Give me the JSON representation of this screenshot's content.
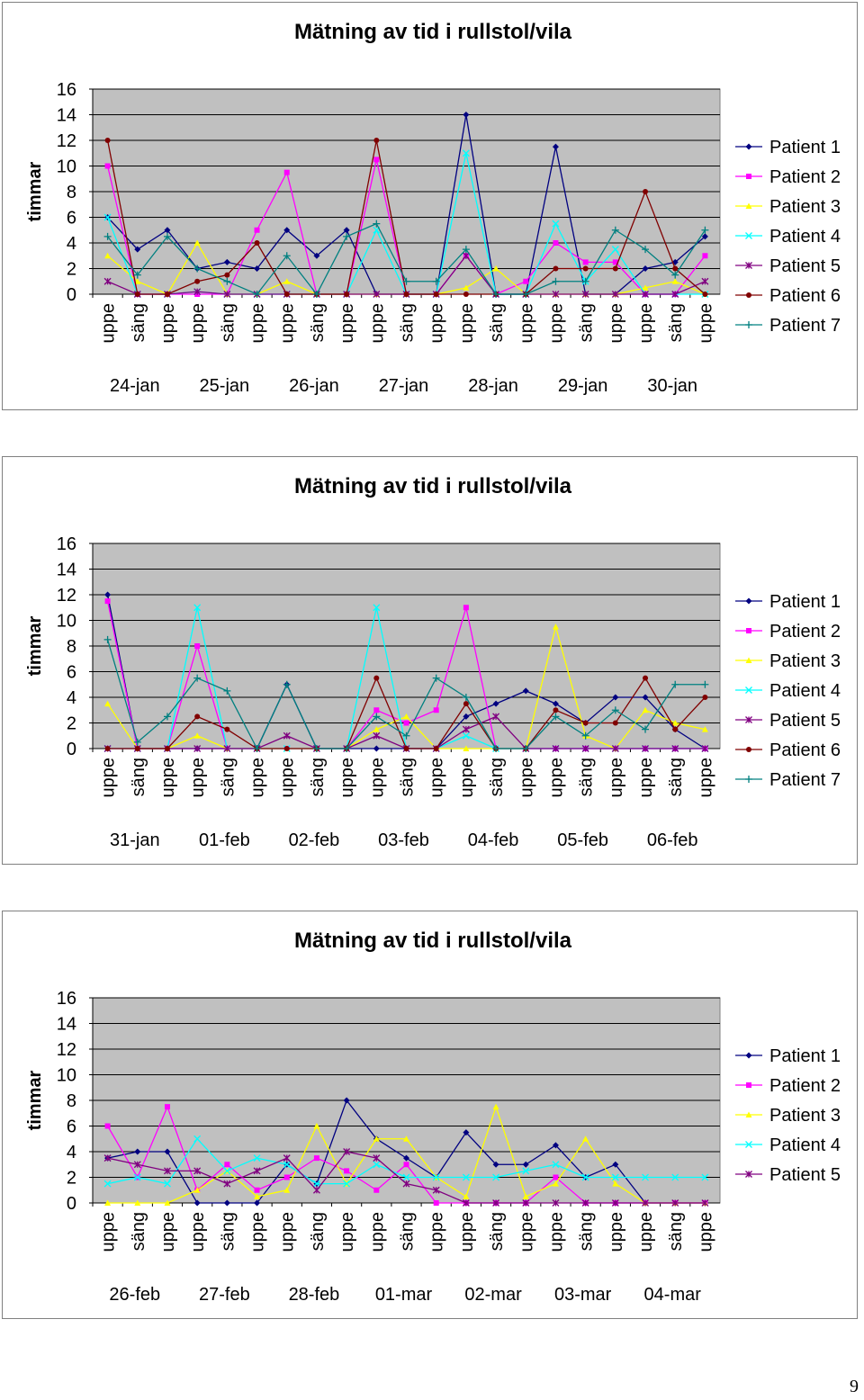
{
  "chart_data": [
    {
      "type": "line",
      "title": "Mätning av tid i rullstol/vila",
      "ylabel": "timmar",
      "xlabel": "",
      "ylim": [
        0,
        16
      ],
      "y_ticks": [
        0,
        2,
        4,
        6,
        8,
        10,
        12,
        14,
        16
      ],
      "grid": "horizontal",
      "legend": "right",
      "categories": [
        "uppe",
        "säng",
        "uppe",
        "uppe",
        "säng",
        "uppe",
        "uppe",
        "säng",
        "uppe",
        "uppe",
        "säng",
        "uppe",
        "uppe",
        "säng",
        "uppe",
        "uppe",
        "säng",
        "uppe",
        "uppe",
        "säng",
        "uppe"
      ],
      "groups": [
        "24-jan",
        "25-jan",
        "26-jan",
        "27-jan",
        "28-jan",
        "29-jan",
        "30-jan"
      ],
      "series": [
        {
          "name": "Patient 1",
          "color": "#000080",
          "marker": "diamond",
          "values": [
            6,
            3.5,
            5,
            2,
            2.5,
            2,
            5,
            3,
            5,
            0,
            0,
            0,
            14,
            0,
            0,
            11.5,
            0,
            0,
            2,
            2.5,
            4.5
          ]
        },
        {
          "name": "Patient 2",
          "color": "#ff00ff",
          "marker": "square",
          "values": [
            10,
            0,
            0,
            0,
            0,
            5,
            9.5,
            0,
            0,
            10.5,
            0,
            0,
            3,
            0,
            1,
            4,
            2.5,
            2.5,
            0,
            0,
            3
          ]
        },
        {
          "name": "Patient 3",
          "color": "#ffff00",
          "marker": "triangle",
          "values": [
            3,
            1,
            0,
            4,
            0,
            0,
            1,
            0,
            0,
            0,
            0,
            0,
            0.5,
            2,
            0,
            0,
            0,
            0,
            0.5,
            1,
            0
          ]
        },
        {
          "name": "Patient 4",
          "color": "#00ffff",
          "marker": "x",
          "values": [
            6,
            0,
            0,
            0.2,
            0,
            0,
            0,
            0,
            0,
            5,
            0,
            0,
            11,
            0,
            0,
            5.5,
            1,
            3.5,
            0,
            0,
            0
          ]
        },
        {
          "name": "Patient 5",
          "color": "#800080",
          "marker": "star",
          "values": [
            1,
            0,
            0,
            0.2,
            0,
            0,
            0,
            0,
            0,
            0,
            0,
            0,
            3,
            0,
            0,
            0,
            0,
            0,
            0,
            0,
            1
          ]
        },
        {
          "name": "Patient 6",
          "color": "#800000",
          "marker": "circle",
          "values": [
            12,
            0,
            0,
            1,
            1.5,
            4,
            0,
            0,
            0,
            12,
            0,
            0,
            0,
            0,
            0,
            2,
            2,
            2,
            8,
            2,
            0
          ]
        },
        {
          "name": "Patient 7",
          "color": "#008080",
          "marker": "plus",
          "values": [
            4.5,
            1.5,
            4.5,
            2,
            1,
            0,
            3,
            0,
            4.5,
            5.5,
            1,
            1,
            3.5,
            0,
            0,
            1,
            1,
            5,
            3.5,
            1.5,
            5
          ]
        }
      ]
    },
    {
      "type": "line",
      "title": "Mätning av tid i rullstol/vila",
      "ylabel": "timmar",
      "xlabel": "",
      "ylim": [
        0,
        16
      ],
      "y_ticks": [
        0,
        2,
        4,
        6,
        8,
        10,
        12,
        14,
        16
      ],
      "grid": "horizontal",
      "legend": "right",
      "categories": [
        "uppe",
        "säng",
        "uppe",
        "uppe",
        "säng",
        "uppe",
        "uppe",
        "säng",
        "uppe",
        "uppe",
        "säng",
        "uppe",
        "uppe",
        "säng",
        "uppe",
        "uppe",
        "säng",
        "uppe",
        "uppe",
        "säng",
        "uppe"
      ],
      "groups": [
        "31-jan",
        "01-feb",
        "02-feb",
        "03-feb",
        "04-feb",
        "05-feb",
        "06-feb"
      ],
      "series": [
        {
          "name": "Patient 1",
          "color": "#000080",
          "marker": "diamond",
          "values": [
            12,
            0,
            0,
            0,
            0,
            0,
            5,
            0,
            0,
            0,
            0,
            0,
            2.5,
            3.5,
            4.5,
            3.5,
            2,
            4,
            4,
            1.5,
            0
          ]
        },
        {
          "name": "Patient 2",
          "color": "#ff00ff",
          "marker": "square",
          "values": [
            11.5,
            0,
            0,
            8,
            0,
            0,
            0,
            0,
            0,
            3,
            2,
            3,
            11,
            0,
            0,
            0,
            0,
            0,
            0,
            0,
            0
          ]
        },
        {
          "name": "Patient 3",
          "color": "#ffff00",
          "marker": "triangle",
          "values": [
            3.5,
            0,
            0,
            1,
            0,
            0,
            0,
            0,
            0,
            1.5,
            2.5,
            0,
            0,
            0,
            0,
            9.5,
            1,
            0,
            3,
            2,
            1.5
          ]
        },
        {
          "name": "Patient 4",
          "color": "#00ffff",
          "marker": "x",
          "values": [
            0,
            0,
            0,
            11,
            0,
            0,
            0,
            0,
            0,
            11,
            0,
            0,
            1,
            0,
            0,
            0,
            0,
            0,
            0,
            0,
            0
          ]
        },
        {
          "name": "Patient 5",
          "color": "#800080",
          "marker": "star",
          "values": [
            0,
            0,
            0,
            0,
            0,
            0,
            1,
            0,
            0,
            1,
            0,
            0,
            1.5,
            2.5,
            0,
            0,
            0,
            0,
            0,
            0,
            0
          ]
        },
        {
          "name": "Patient 6",
          "color": "#800000",
          "marker": "circle",
          "values": [
            0,
            0,
            0,
            2.5,
            1.5,
            0,
            0,
            0,
            0,
            5.5,
            0,
            0,
            3.5,
            0,
            0,
            3,
            2,
            2,
            5.5,
            1.5,
            4
          ]
        },
        {
          "name": "Patient 7",
          "color": "#008080",
          "marker": "plus",
          "values": [
            8.5,
            0.5,
            2.5,
            5.5,
            4.5,
            0,
            5,
            0,
            0,
            2.5,
            1,
            5.5,
            4,
            0,
            0,
            2.5,
            1,
            3,
            1.5,
            5,
            5
          ]
        }
      ]
    },
    {
      "type": "line",
      "title": "Mätning av tid i rullstol/vila",
      "ylabel": "timmar",
      "xlabel": "",
      "ylim": [
        0,
        16
      ],
      "y_ticks": [
        0,
        2,
        4,
        6,
        8,
        10,
        12,
        14,
        16
      ],
      "grid": "horizontal",
      "legend": "right",
      "categories": [
        "uppe",
        "säng",
        "uppe",
        "uppe",
        "säng",
        "uppe",
        "uppe",
        "säng",
        "uppe",
        "uppe",
        "säng",
        "uppe",
        "uppe",
        "säng",
        "uppe",
        "uppe",
        "säng",
        "uppe",
        "uppe",
        "säng",
        "uppe"
      ],
      "groups": [
        "26-feb",
        "27-feb",
        "28-feb",
        "01-mar",
        "02-mar",
        "03-mar",
        "04-mar"
      ],
      "series": [
        {
          "name": "Patient 1",
          "color": "#000080",
          "marker": "diamond",
          "values": [
            3.5,
            4,
            4,
            0,
            0,
            0,
            3,
            1.5,
            8,
            5,
            3.5,
            2,
            5.5,
            3,
            3,
            4.5,
            2,
            3,
            0,
            0,
            0
          ]
        },
        {
          "name": "Patient 2",
          "color": "#ff00ff",
          "marker": "square",
          "values": [
            6,
            2,
            7.5,
            1,
            3,
            1,
            2,
            3.5,
            2.5,
            1,
            3,
            0,
            0,
            0,
            0,
            2,
            0,
            0,
            0,
            0,
            0
          ]
        },
        {
          "name": "Patient 3",
          "color": "#ffff00",
          "marker": "triangle",
          "values": [
            0,
            0,
            0,
            1,
            2.5,
            0.5,
            1,
            6,
            1.5,
            5,
            5,
            2,
            0.5,
            7.5,
            0.5,
            1.5,
            5,
            1.5,
            0,
            0,
            0
          ]
        },
        {
          "name": "Patient 4",
          "color": "#00ffff",
          "marker": "x",
          "values": [
            1.5,
            2,
            1.5,
            5,
            2.5,
            3.5,
            3,
            1.5,
            1.5,
            3,
            2,
            2,
            2,
            2,
            2.5,
            3,
            2,
            2,
            2,
            2,
            2
          ]
        },
        {
          "name": "Patient 5",
          "color": "#800080",
          "marker": "star",
          "values": [
            3.5,
            3,
            2.5,
            2.5,
            1.5,
            2.5,
            3.5,
            1,
            4,
            3.5,
            1.5,
            1,
            0,
            0,
            0,
            0,
            0,
            0,
            0,
            0,
            0
          ]
        }
      ]
    }
  ],
  "page_number": "9"
}
